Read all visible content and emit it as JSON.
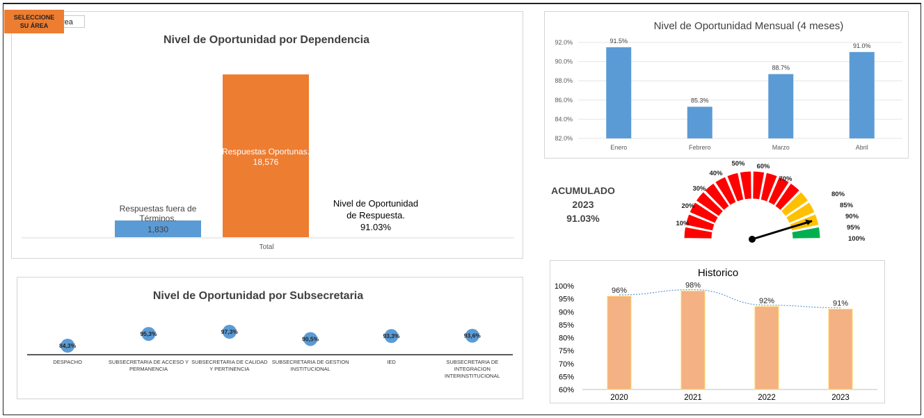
{
  "area_button": {
    "label_line1": "SELECCIONE",
    "label_line2": "SU ÁREA",
    "slicer_text": "rea"
  },
  "dependencia": {
    "title": "Nivel de Oportunidad por Dependencia",
    "category": "Total",
    "fuera_line1": "Respuestas fuera de",
    "fuera_line2": "Términos.",
    "fuera_value": "1,830",
    "oportunas_line1": "Respuestas Oportunas.",
    "oportunas_value": "18,576",
    "nivel_line1": "Nivel de Oportunidad",
    "nivel_line2": "de Respuesta.",
    "nivel_value": "91.03%"
  },
  "mensual": {
    "title": "Nivel de Oportunidad Mensual (4 meses)"
  },
  "acumulado": {
    "line1": "ACUMULADO",
    "line2": "2023",
    "value": "91.03%"
  },
  "gauge": {
    "labels": [
      "10%",
      "20%",
      "30%",
      "40%",
      "50%",
      "60%",
      "70%",
      "80%",
      "85%",
      "90%",
      "95%",
      "100%"
    ],
    "value_percent": 91.03,
    "colors": {
      "red": "#ff0000",
      "yellow": "#ffc000",
      "green": "#00b050"
    }
  },
  "subsecretaria": {
    "title": "Nivel de Oportunidad por Subsecretaria"
  },
  "historico": {
    "title": "Historico"
  },
  "colors": {
    "blue": "#5b9bd5",
    "orange": "#ed7d31",
    "peach": "#f4b183",
    "peach_border": "#ffd966"
  },
  "chart_data": [
    {
      "type": "bar",
      "title": "Nivel de Oportunidad por Dependencia",
      "categories": [
        "Total"
      ],
      "series": [
        {
          "name": "Respuestas fuera de Términos.",
          "values": [
            1830
          ]
        },
        {
          "name": "Respuestas Oportunas.",
          "values": [
            18576
          ]
        }
      ]
    },
    {
      "type": "bar",
      "title": "Nivel de Oportunidad Mensual (4 meses)",
      "categories": [
        "Enero",
        "Febrero",
        "Marzo",
        "Abril"
      ],
      "values": [
        91.5,
        85.3,
        88.7,
        91.0
      ],
      "value_labels": [
        "91.5%",
        "85.3%",
        "88.7%",
        "91.0%"
      ],
      "ylim": [
        82,
        92
      ],
      "yticks": [
        "92.0%",
        "90.0%",
        "88.0%",
        "86.0%",
        "84.0%",
        "82.0%"
      ]
    },
    {
      "type": "scatter",
      "title": "Nivel de Oportunidad por Subsecretaria",
      "categories": [
        "DESPACHO",
        "SUBSECRETARIA DE ACCESO Y PERMANENCIA",
        "SUBSECRETARIA DE CALIDAD Y PERTINENCIA",
        "SUBSECRETARIA DE GESTION INSTITUCIONAL",
        "IED",
        "SUBSECRETARIA DE INTEGRACION INTERINSTITUCIONAL"
      ],
      "category_lines": [
        [
          "DESPACHO"
        ],
        [
          "SUBSECRETARIA DE ACCESO Y",
          "PERMANENCIA"
        ],
        [
          "SUBSECRETARIA DE CALIDAD",
          "Y PERTINENCIA"
        ],
        [
          "SUBSECRETARIA DE GESTION",
          "INSTITUCIONAL"
        ],
        [
          "IED"
        ],
        [
          "SUBSECRETARIA DE",
          "INTEGRACION",
          "INTERINSTITUCIONAL"
        ]
      ],
      "values": [
        84.3,
        95.3,
        97.3,
        90.5,
        93.3,
        93.6
      ],
      "value_labels": [
        "84,3%",
        "95,3%",
        "97,3%",
        "90,5%",
        "93,3%",
        "93,6%"
      ]
    },
    {
      "type": "bar",
      "title": "Historico",
      "categories": [
        "2020",
        "2021",
        "2022",
        "2023"
      ],
      "values": [
        96,
        98,
        92,
        91
      ],
      "value_labels": [
        "96%",
        "98%",
        "92%",
        "91%"
      ],
      "ylim": [
        60,
        100
      ],
      "yticks": [
        "100%",
        "95%",
        "90%",
        "85%",
        "80%",
        "75%",
        "70%",
        "65%",
        "60%"
      ],
      "trendline": "dotted"
    }
  ]
}
